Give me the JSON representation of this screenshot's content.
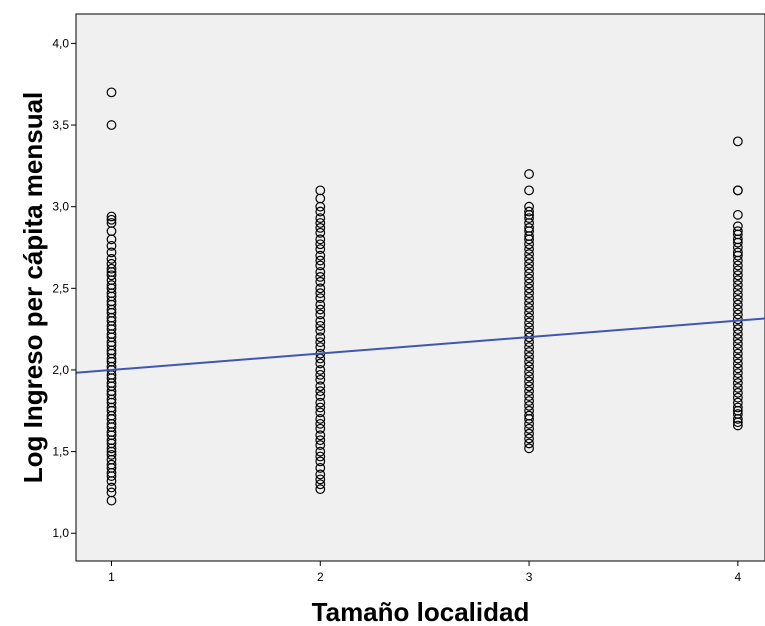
{
  "chart_data": {
    "type": "scatter",
    "title": "",
    "xlabel": "Tamaño localidad",
    "ylabel": "Log Ingreso per cápita mensual",
    "xlim": [
      0.83,
      4.13
    ],
    "ylim": [
      0.83,
      4.18
    ],
    "x_ticks": [
      1,
      2,
      3,
      4
    ],
    "x_tick_labels": [
      "1",
      "2",
      "3",
      "4"
    ],
    "y_ticks": [
      1.0,
      1.5,
      2.0,
      2.5,
      3.0,
      3.5,
      4.0
    ],
    "y_tick_labels": [
      "1,0",
      "1,5",
      "2,0",
      "2,5",
      "3,0",
      "3,5",
      "4,0"
    ],
    "grid": false,
    "colors": {
      "plot_background": "#f0f0f0",
      "points": "#000000",
      "fit_line": "#3f57b3"
    },
    "series": [
      {
        "x": 1,
        "y": [
          3.7,
          3.5,
          2.94,
          2.92,
          2.9,
          2.85,
          2.8,
          2.76,
          2.72,
          2.68,
          2.65,
          2.62,
          2.6,
          2.58,
          2.55,
          2.52,
          2.5,
          2.47,
          2.45,
          2.42,
          2.4,
          2.37,
          2.35,
          2.32,
          2.3,
          2.27,
          2.25,
          2.22,
          2.2,
          2.17,
          2.15,
          2.12,
          2.1,
          2.07,
          2.05,
          2.02,
          2.0,
          1.97,
          1.95,
          1.92,
          1.9,
          1.87,
          1.85,
          1.82,
          1.8,
          1.77,
          1.75,
          1.72,
          1.7,
          1.67,
          1.65,
          1.62,
          1.6,
          1.57,
          1.55,
          1.52,
          1.5,
          1.48,
          1.45,
          1.42,
          1.4,
          1.37,
          1.35,
          1.32,
          1.28,
          1.25,
          1.2
        ]
      },
      {
        "x": 2,
        "y": [
          3.1,
          3.05,
          3.0,
          2.97,
          2.93,
          2.9,
          2.87,
          2.84,
          2.8,
          2.77,
          2.74,
          2.7,
          2.67,
          2.64,
          2.6,
          2.57,
          2.54,
          2.5,
          2.47,
          2.44,
          2.4,
          2.37,
          2.34,
          2.3,
          2.27,
          2.24,
          2.2,
          2.17,
          2.14,
          2.1,
          2.07,
          2.04,
          2.0,
          1.97,
          1.94,
          1.9,
          1.87,
          1.84,
          1.8,
          1.77,
          1.74,
          1.7,
          1.67,
          1.64,
          1.6,
          1.57,
          1.54,
          1.5,
          1.47,
          1.44,
          1.4,
          1.36,
          1.33,
          1.3,
          1.27
        ]
      },
      {
        "x": 3,
        "y": [
          3.2,
          3.1,
          3.0,
          2.97,
          2.95,
          2.93,
          2.9,
          2.87,
          2.85,
          2.82,
          2.8,
          2.77,
          2.74,
          2.71,
          2.68,
          2.65,
          2.62,
          2.59,
          2.56,
          2.53,
          2.5,
          2.47,
          2.44,
          2.41,
          2.38,
          2.35,
          2.32,
          2.29,
          2.26,
          2.23,
          2.2,
          2.17,
          2.14,
          2.11,
          2.08,
          2.05,
          2.02,
          1.99,
          1.96,
          1.93,
          1.9,
          1.87,
          1.84,
          1.81,
          1.78,
          1.75,
          1.72,
          1.7,
          1.67,
          1.64,
          1.61,
          1.58,
          1.55,
          1.52
        ]
      },
      {
        "x": 4,
        "y": [
          3.4,
          3.1,
          3.1,
          2.95,
          2.88,
          2.85,
          2.83,
          2.8,
          2.78,
          2.75,
          2.72,
          2.7,
          2.67,
          2.64,
          2.61,
          2.58,
          2.55,
          2.52,
          2.49,
          2.46,
          2.43,
          2.4,
          2.37,
          2.34,
          2.31,
          2.28,
          2.25,
          2.22,
          2.19,
          2.16,
          2.13,
          2.1,
          2.07,
          2.04,
          2.01,
          1.98,
          1.95,
          1.92,
          1.89,
          1.86,
          1.83,
          1.8,
          1.77,
          1.75,
          1.73,
          1.7,
          1.68,
          1.66
        ]
      }
    ],
    "fit_line": {
      "type": "linear",
      "x": [
        0.83,
        4.13
      ],
      "y": [
        1.983,
        2.315
      ]
    }
  }
}
